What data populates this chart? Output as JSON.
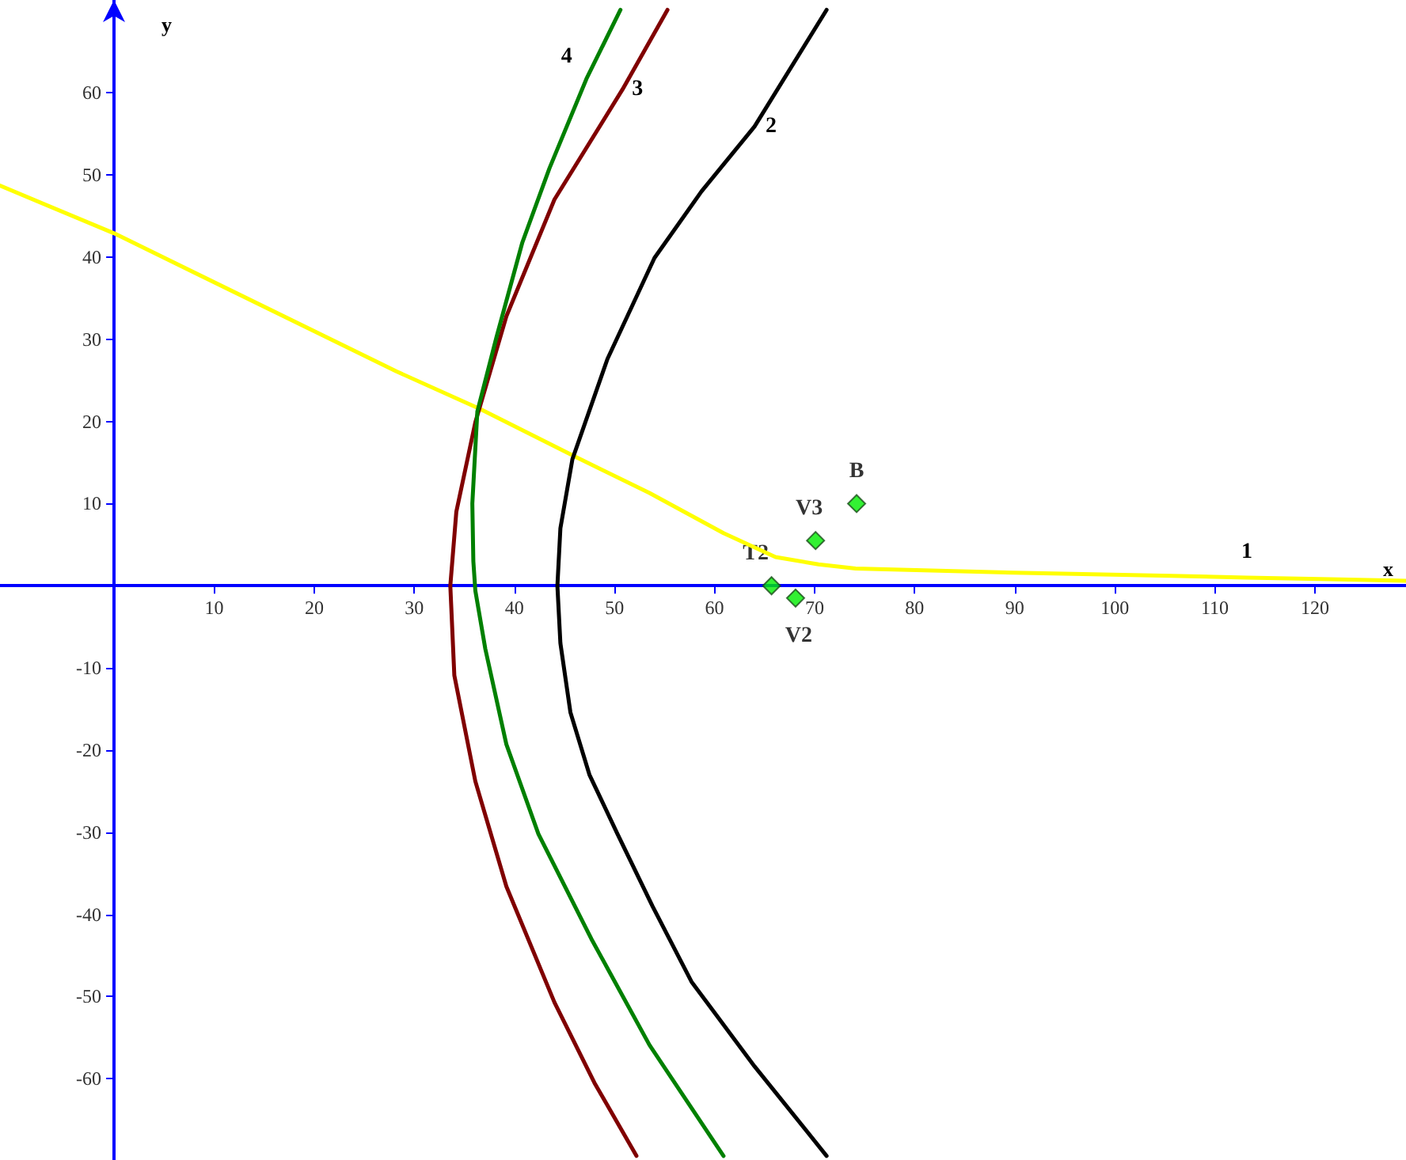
{
  "chart_data": {
    "type": "line",
    "xlabel": "x",
    "ylabel": "y",
    "xlim": [
      -11.4,
      129.1
    ],
    "ylim": [
      -69.9,
      71.3
    ],
    "xticks": [
      10,
      20,
      30,
      40,
      50,
      60,
      70,
      80,
      90,
      100,
      110,
      120
    ],
    "yticks": [
      -60,
      -50,
      -40,
      -30,
      -20,
      -10,
      10,
      20,
      30,
      40,
      50,
      60
    ],
    "marker": "none",
    "series": [
      {
        "name": "1",
        "color": "#ffff00",
        "x": [
          -11.4,
          0,
          28.2,
          36.6,
          46.1,
          53.5,
          60.9,
          66.1,
          70.4,
          74.1,
          89.9,
          105.7,
          113.2,
          121.5,
          129.1
        ],
        "values": [
          48.7,
          42.9,
          26.1,
          21.5,
          15.7,
          11.3,
          6.4,
          3.5,
          2.6,
          2.1,
          1.6,
          1.2,
          1.0,
          0.8,
          0.6
        ]
      },
      {
        "name": "2",
        "color": "#000000",
        "x": [
          71.2,
          64.0,
          58.7,
          54.0,
          49.3,
          45.8,
          44.6,
          44.3,
          44.6,
          45.6,
          47.5,
          50.3,
          53.8,
          57.7,
          64.0,
          71.2
        ],
        "values": [
          70.1,
          55.9,
          48.0,
          39.9,
          27.6,
          15.4,
          7.0,
          0,
          -7.0,
          -15.4,
          -23.0,
          -30.2,
          -39.0,
          -48.2,
          -58.5,
          -69.4
        ]
      },
      {
        "name": "3",
        "color": "#800000",
        "x": [
          55.3,
          50.8,
          44.0,
          39.2,
          36.1,
          34.2,
          33.6,
          34.0,
          36.1,
          39.2,
          44.0,
          48.0,
          52.2
        ],
        "values": [
          70.1,
          60.4,
          47.0,
          32.8,
          19.9,
          9.0,
          0,
          -10.9,
          -23.8,
          -36.6,
          -50.7,
          -60.5,
          -69.4
        ]
      },
      {
        "name": "4",
        "color": "#008000",
        "x": [
          50.6,
          47.2,
          43.5,
          40.8,
          38.2,
          36.3,
          35.8,
          35.9,
          36.1,
          37.1,
          39.2,
          42.4,
          47.7,
          53.5,
          60.9
        ],
        "values": [
          70.1,
          61.7,
          50.8,
          41.8,
          30.2,
          21.2,
          10.0,
          3.0,
          -0.6,
          -7.7,
          -19.3,
          -30.2,
          -43.0,
          -55.9,
          -69.4
        ]
      },
      {
        "name": "B",
        "type": "scatter",
        "marker": "diamond",
        "color": "#00ee00",
        "x": [
          74.2
        ],
        "values": [
          10.0
        ]
      },
      {
        "name": "V3",
        "type": "scatter",
        "marker": "diamond",
        "color": "#00ee00",
        "x": [
          70.1
        ],
        "values": [
          5.5
        ]
      },
      {
        "name": "T2",
        "type": "scatter",
        "marker": "diamond",
        "color": "#00ee00",
        "x": [
          65.7
        ],
        "values": [
          0
        ]
      },
      {
        "name": "V2",
        "type": "scatter",
        "marker": "diamond",
        "color": "#00ee00",
        "x": [
          68.1
        ],
        "values": [
          -1.5
        ]
      }
    ]
  }
}
